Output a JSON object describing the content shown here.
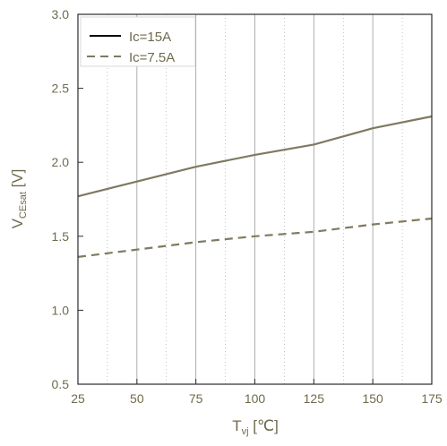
{
  "colors": {
    "axis": "#2b2b2b",
    "text": "#6f6a4e",
    "series": "#7f7a60",
    "grid": "#9a9a9a",
    "legend_solid": "#000000"
  },
  "chart_data": {
    "type": "line",
    "x_label": {
      "main": "T",
      "sub": "vj",
      "unit": " [℃]"
    },
    "y_label": {
      "main": "V",
      "sub": "CEsat",
      "unit": " [V]"
    },
    "xlim": [
      25,
      175
    ],
    "ylim": [
      0.5,
      3.0
    ],
    "x_ticks": [
      25,
      50,
      75,
      100,
      125,
      150,
      175
    ],
    "y_ticks": [
      "0.5",
      "1.0",
      "1.5",
      "2.0",
      "2.5",
      "3.0"
    ],
    "grid": "vertical",
    "legend_position": "top-left",
    "series": [
      {
        "name": "Ic=15A",
        "style": "solid",
        "x": [
          25,
          50,
          75,
          100,
          125,
          150,
          175
        ],
        "y": [
          1.77,
          1.87,
          1.97,
          2.05,
          2.12,
          2.23,
          2.31
        ]
      },
      {
        "name": "Ic=7.5A",
        "style": "dashed",
        "x": [
          25,
          50,
          75,
          100,
          125,
          150,
          175
        ],
        "y": [
          1.36,
          1.41,
          1.46,
          1.5,
          1.53,
          1.58,
          1.62
        ]
      }
    ]
  }
}
